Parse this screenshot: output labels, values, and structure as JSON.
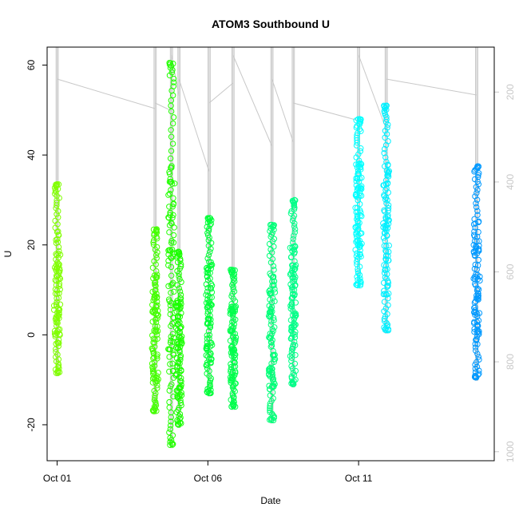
{
  "chart_data": {
    "type": "scatter",
    "title": "ATOM3 Southbound U",
    "xlabel": "Date",
    "ylabel": "U",
    "xlim": [
      "2000-09-30T16:00",
      "2000-10-15T12:00"
    ],
    "ylim": [
      -28,
      64
    ],
    "x_ticks": [
      {
        "label": "Oct 01",
        "at": "2000-10-01"
      },
      {
        "label": "Oct 06",
        "at": "2000-10-06"
      },
      {
        "label": "Oct 11",
        "at": "2000-10-11"
      }
    ],
    "y_ticks": [
      -20,
      0,
      20,
      40,
      60
    ],
    "y2_axis": {
      "ticks": [
        200,
        400,
        600,
        800,
        1000
      ],
      "range_top_to_bottom": [
        100,
        1020
      ],
      "color": "#c8c8c8"
    },
    "casts": [
      {
        "time": "2000-10-01T00:00",
        "u_min": -8.5,
        "u_max": 33.5,
        "color": "#80ff00"
      },
      {
        "time": "2000-10-04T06:00",
        "u_min": -17.0,
        "u_max": 23.5,
        "color": "#44ff00"
      },
      {
        "time": "2000-10-04T19:00",
        "u_min": -24.5,
        "u_max": 60.5,
        "color": "#22ff00"
      },
      {
        "time": "2000-10-05T01:00",
        "u_min": -20.0,
        "u_max": 18.5,
        "color": "#1aff00"
      },
      {
        "time": "2000-10-06T01:00",
        "u_min": -13.0,
        "u_max": 26.0,
        "color": "#00ff38"
      },
      {
        "time": "2000-10-06T20:00",
        "u_min": -16.0,
        "u_max": 14.5,
        "color": "#00ff4c"
      },
      {
        "time": "2000-10-08T03:00",
        "u_min": -19.0,
        "u_max": 24.5,
        "color": "#00ff78"
      },
      {
        "time": "2000-10-08T20:00",
        "u_min": -11.0,
        "u_max": 30.0,
        "color": "#00ff88"
      },
      {
        "time": "2000-10-11T00:00",
        "u_min": 11.0,
        "u_max": 48.0,
        "color": "#00ffff"
      },
      {
        "time": "2000-10-11T22:00",
        "u_min": 1.0,
        "u_max": 51.0,
        "color": "#00f0ff"
      },
      {
        "time": "2000-10-14T22:00",
        "u_min": -9.5,
        "u_max": 37.5,
        "color": "#0099ff"
      }
    ]
  }
}
